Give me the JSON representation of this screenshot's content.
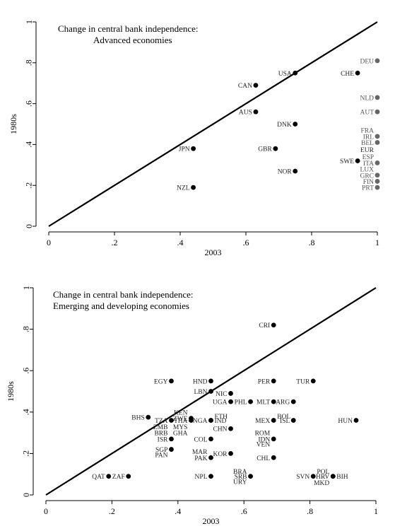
{
  "chart_data": [
    {
      "type": "scatter",
      "title_lines": [
        "Change in central bank independence:",
        "Advanced economies"
      ],
      "xlabel": "2003",
      "ylabel": "1980s",
      "xlim": [
        0,
        1
      ],
      "ylim": [
        0,
        1
      ],
      "xticks": [
        "0",
        ".2",
        ".4",
        ".6",
        ".8",
        "1"
      ],
      "yticks": [
        "0",
        ".2",
        ".4",
        ".6",
        ".8",
        "1"
      ],
      "diagonal": true,
      "marker_color": "#000000",
      "points": [
        {
          "label": "DEU",
          "x": 1.0,
          "y": 0.81,
          "side": "l",
          "grey": true
        },
        {
          "label": "USA",
          "x": 0.75,
          "y": 0.75,
          "side": "l"
        },
        {
          "label": "CHE",
          "x": 0.94,
          "y": 0.75,
          "side": "l"
        },
        {
          "label": "CAN",
          "x": 0.63,
          "y": 0.69,
          "side": "l"
        },
        {
          "label": "NLD",
          "x": 1.0,
          "y": 0.63,
          "side": "l",
          "grey": true
        },
        {
          "label": "AUS",
          "x": 0.63,
          "y": 0.56,
          "side": "l"
        },
        {
          "label": "AUT",
          "x": 1.0,
          "y": 0.56,
          "side": "l",
          "grey": true
        },
        {
          "label": "DNK",
          "x": 0.75,
          "y": 0.5,
          "side": "l"
        },
        {
          "label": "FRA",
          "x": 1.0,
          "y": 0.47,
          "side": "l",
          "grey": true,
          "nodot": true
        },
        {
          "label": "IRL",
          "x": 1.0,
          "y": 0.44,
          "side": "l",
          "grey": true
        },
        {
          "label": "BEL",
          "x": 1.0,
          "y": 0.41,
          "side": "l",
          "grey": true
        },
        {
          "label": "EUR",
          "x": 1.0,
          "y": 0.375,
          "side": "l",
          "nodot": true
        },
        {
          "label": "JPN",
          "x": 0.44,
          "y": 0.38,
          "side": "l"
        },
        {
          "label": "GBR",
          "x": 0.69,
          "y": 0.38,
          "side": "l"
        },
        {
          "label": "ESP",
          "x": 1.0,
          "y": 0.34,
          "side": "l",
          "grey": true,
          "nodot": true
        },
        {
          "label": "SWE",
          "x": 0.94,
          "y": 0.32,
          "side": "l"
        },
        {
          "label": "ITA",
          "x": 1.0,
          "y": 0.31,
          "side": "l",
          "grey": true
        },
        {
          "label": "LUX",
          "x": 1.0,
          "y": 0.28,
          "side": "l",
          "grey": true,
          "nodot": true
        },
        {
          "label": "NOR",
          "x": 0.75,
          "y": 0.27,
          "side": "l"
        },
        {
          "label": "GRC",
          "x": 1.0,
          "y": 0.25,
          "side": "l",
          "grey": true
        },
        {
          "label": "FIN",
          "x": 1.0,
          "y": 0.22,
          "side": "l",
          "grey": true
        },
        {
          "label": "NZL",
          "x": 0.44,
          "y": 0.19,
          "side": "l"
        },
        {
          "label": "PRT",
          "x": 1.0,
          "y": 0.19,
          "side": "l",
          "grey": true
        }
      ]
    },
    {
      "type": "scatter",
      "title_lines": [
        "Change in central bank independence:",
        "Emerging and developing economies"
      ],
      "xlabel": "2003",
      "ylabel": "1980s",
      "xlim": [
        0,
        1
      ],
      "ylim": [
        0,
        1
      ],
      "xticks": [
        "0",
        ".2",
        ".4",
        ".6",
        ".8",
        "1"
      ],
      "yticks": [
        "0",
        ".2",
        ".4",
        ".6",
        ".8",
        "1"
      ],
      "diagonal": true,
      "marker_color": "#000000",
      "points": [
        {
          "label": "CRI",
          "x": 0.69,
          "y": 0.82,
          "side": "l"
        },
        {
          "label": "EGY",
          "x": 0.38,
          "y": 0.55,
          "side": "l"
        },
        {
          "label": "HND",
          "x": 0.5,
          "y": 0.55,
          "side": "l"
        },
        {
          "label": "PER",
          "x": 0.69,
          "y": 0.55,
          "side": "l"
        },
        {
          "label": "TUR",
          "x": 0.81,
          "y": 0.55,
          "side": "l"
        },
        {
          "label": "LBN",
          "x": 0.5,
          "y": 0.5,
          "side": "l"
        },
        {
          "label": "NIC",
          "x": 0.56,
          "y": 0.49,
          "side": "l"
        },
        {
          "label": "UGA",
          "x": 0.56,
          "y": 0.45,
          "side": "l"
        },
        {
          "label": "PHL",
          "x": 0.62,
          "y": 0.45,
          "side": "l"
        },
        {
          "label": "MLT",
          "x": 0.69,
          "y": 0.45,
          "side": "l"
        },
        {
          "label": "ARG",
          "x": 0.75,
          "y": 0.45,
          "side": "l"
        },
        {
          "label": "KEN",
          "x": 0.44,
          "y": 0.4,
          "side": "l",
          "nodot": true
        },
        {
          "label": "ETH",
          "x": 0.5,
          "y": 0.38,
          "side": "r",
          "nodot": true
        },
        {
          "label": "BHS",
          "x": 0.31,
          "y": 0.375,
          "side": "l"
        },
        {
          "label": "ZWE",
          "x": 0.44,
          "y": 0.37,
          "side": "l"
        },
        {
          "label": "BOL",
          "x": 0.69,
          "y": 0.38,
          "side": "r",
          "nodot": true
        },
        {
          "label": "TZA",
          "x": 0.38,
          "y": 0.36,
          "side": "l"
        },
        {
          "label": "THA",
          "x": 0.44,
          "y": 0.36,
          "side": "l"
        },
        {
          "label": "NGA",
          "x": 0.5,
          "y": 0.36,
          "side": "l"
        },
        {
          "label": "IND",
          "x": 0.5,
          "y": 0.36,
          "side": "r"
        },
        {
          "label": "MEX",
          "x": 0.69,
          "y": 0.36,
          "side": "l"
        },
        {
          "label": "ISL",
          "x": 0.75,
          "y": 0.36,
          "side": "l"
        },
        {
          "label": "HUN",
          "x": 0.94,
          "y": 0.36,
          "side": "l"
        },
        {
          "label": "ZMB",
          "x": 0.38,
          "y": 0.33,
          "side": "l",
          "nodot": true
        },
        {
          "label": "MYS",
          "x": 0.44,
          "y": 0.33,
          "side": "l",
          "nodot": true
        },
        {
          "label": "CHN",
          "x": 0.56,
          "y": 0.32,
          "side": "l"
        },
        {
          "label": "BRB",
          "x": 0.38,
          "y": 0.3,
          "side": "l",
          "nodot": true
        },
        {
          "label": "GHA",
          "x": 0.44,
          "y": 0.3,
          "side": "l",
          "nodot": true
        },
        {
          "label": "ROM",
          "x": 0.69,
          "y": 0.3,
          "side": "l",
          "nodot": true
        },
        {
          "label": "ISR",
          "x": 0.38,
          "y": 0.27,
          "side": "l"
        },
        {
          "label": "COL",
          "x": 0.5,
          "y": 0.27,
          "side": "l"
        },
        {
          "label": "IDN",
          "x": 0.69,
          "y": 0.27,
          "side": "l"
        },
        {
          "label": "VEN",
          "x": 0.69,
          "y": 0.245,
          "side": "l",
          "nodot": true
        },
        {
          "label": "SGP",
          "x": 0.38,
          "y": 0.22,
          "side": "l"
        },
        {
          "label": "MAR",
          "x": 0.5,
          "y": 0.21,
          "side": "l",
          "nodot": true
        },
        {
          "label": "KOR",
          "x": 0.56,
          "y": 0.2,
          "side": "l"
        },
        {
          "label": "PAN",
          "x": 0.38,
          "y": 0.195,
          "side": "l",
          "nodot": true
        },
        {
          "label": "PAK",
          "x": 0.5,
          "y": 0.18,
          "side": "l"
        },
        {
          "label": "CHL",
          "x": 0.69,
          "y": 0.18,
          "side": "l"
        },
        {
          "label": "POL",
          "x": 0.87,
          "y": 0.115,
          "side": "l",
          "nodot": true
        },
        {
          "label": "BRA",
          "x": 0.62,
          "y": 0.115,
          "side": "l",
          "nodot": true
        },
        {
          "label": "QAT",
          "x": 0.19,
          "y": 0.09,
          "side": "l"
        },
        {
          "label": "ZAF",
          "x": 0.25,
          "y": 0.09,
          "side": "l"
        },
        {
          "label": "NPL",
          "x": 0.5,
          "y": 0.09,
          "side": "l"
        },
        {
          "label": "SRB",
          "x": 0.62,
          "y": 0.09,
          "side": "l"
        },
        {
          "label": "SVN",
          "x": 0.81,
          "y": 0.09,
          "side": "l"
        },
        {
          "label": "HRV",
          "x": 0.87,
          "y": 0.09,
          "side": "l"
        },
        {
          "label": "BIH",
          "x": 0.87,
          "y": 0.09,
          "side": "r"
        },
        {
          "label": "URY",
          "x": 0.62,
          "y": 0.065,
          "side": "l",
          "nodot": true
        },
        {
          "label": "MKD",
          "x": 0.87,
          "y": 0.06,
          "side": "l",
          "nodot": true
        }
      ]
    }
  ]
}
